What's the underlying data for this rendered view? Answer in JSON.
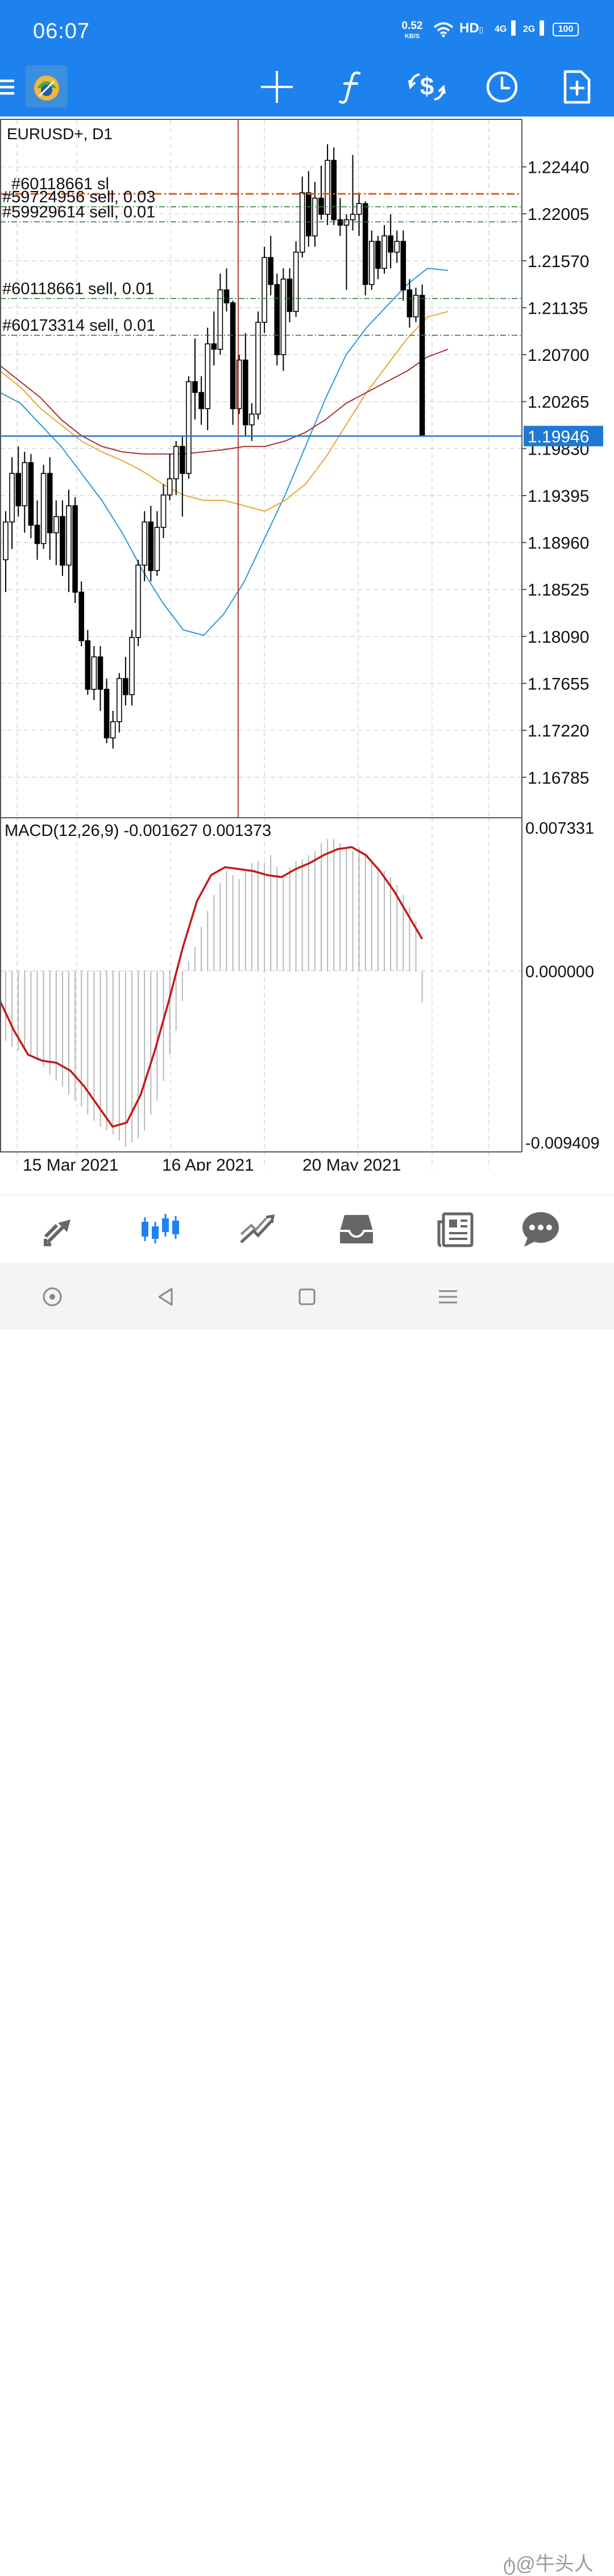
{
  "status_bar": {
    "time": "06:07",
    "net_speed": "0.52",
    "net_unit": "KB/S",
    "hd_label": "HD",
    "signal1": "4G",
    "signal2": "2G",
    "battery": "100"
  },
  "toolbar": {
    "menu_icon": "hamburger-menu-icon",
    "logo": "metatrader-logo",
    "crosshair_icon": "crosshair-icon",
    "indicators_icon": "function-f-icon",
    "symbol_icon": "dollar-exchange-icon",
    "timeframe_icon": "clock-icon",
    "new_order_icon": "document-plus-icon"
  },
  "chart": {
    "symbol_label": "EURUSD+, D1",
    "current_price": "1.19946",
    "price_ticks": [
      "1.22440",
      "1.22005",
      "1.21570",
      "1.21135",
      "1.20700",
      "1.20265",
      "1.19830",
      "1.19395",
      "1.18960",
      "1.18525",
      "1.18090",
      "1.17655",
      "1.17220",
      "1.16785"
    ],
    "date_ticks": [
      "15 Mar 2021",
      "16 Apr 2021",
      "20 May 2021"
    ],
    "order_lines": [
      {
        "label": "#60118661 sl",
        "price": 1.2219,
        "style": "sl"
      },
      {
        "label": "#59724956 sell, 0.03",
        "price": 1.2207,
        "style": "order"
      },
      {
        "label": "#59929614 sell, 0.01",
        "price": 1.2193,
        "style": "order"
      },
      {
        "label": "#60118661 sell, 0.01",
        "price": 1.2122,
        "style": "order"
      },
      {
        "label": "#60173314 sell, 0.01",
        "price": 1.2088,
        "style": "order"
      }
    ],
    "colors": {
      "bid_line": "#1f78d1",
      "sl_line": "#e05a1c",
      "order_line": "#2e7d32",
      "crosshair": "#a52a2a",
      "ma_fast": "#2b9ad8",
      "ma_mid": "#e8a830",
      "ma_slow": "#a83232",
      "macd_signal": "#c41a1a"
    }
  },
  "macd": {
    "label": "MACD(12,26,9) -0.001627 0.001373",
    "ticks": [
      "0.007331",
      "0.000000",
      "-0.009409"
    ]
  },
  "chart_data": {
    "type": "candlestick",
    "title": "EURUSD+, D1",
    "ylim": [
      1.1641,
      1.2288
    ],
    "candles": [
      {
        "o": 1.188,
        "h": 1.1925,
        "l": 1.185,
        "c": 1.1915
      },
      {
        "o": 1.1915,
        "h": 1.1975,
        "l": 1.189,
        "c": 1.196
      },
      {
        "o": 1.196,
        "h": 1.1985,
        "l": 1.192,
        "c": 1.193
      },
      {
        "o": 1.193,
        "h": 1.198,
        "l": 1.1905,
        "c": 1.197
      },
      {
        "o": 1.197,
        "h": 1.1978,
        "l": 1.19,
        "c": 1.1912
      },
      {
        "o": 1.1912,
        "h": 1.1935,
        "l": 1.188,
        "c": 1.1895
      },
      {
        "o": 1.1895,
        "h": 1.1968,
        "l": 1.189,
        "c": 1.196
      },
      {
        "o": 1.196,
        "h": 1.1975,
        "l": 1.188,
        "c": 1.1905
      },
      {
        "o": 1.1905,
        "h": 1.1935,
        "l": 1.1875,
        "c": 1.192
      },
      {
        "o": 1.192,
        "h": 1.1935,
        "l": 1.1865,
        "c": 1.1875
      },
      {
        "o": 1.1875,
        "h": 1.1945,
        "l": 1.185,
        "c": 1.193
      },
      {
        "o": 1.193,
        "h": 1.1938,
        "l": 1.184,
        "c": 1.185
      },
      {
        "o": 1.185,
        "h": 1.186,
        "l": 1.18,
        "c": 1.1805
      },
      {
        "o": 1.1805,
        "h": 1.1815,
        "l": 1.1755,
        "c": 1.176
      },
      {
        "o": 1.176,
        "h": 1.18,
        "l": 1.175,
        "c": 1.179
      },
      {
        "o": 1.179,
        "h": 1.18,
        "l": 1.174,
        "c": 1.176
      },
      {
        "o": 1.176,
        "h": 1.177,
        "l": 1.171,
        "c": 1.1715
      },
      {
        "o": 1.1715,
        "h": 1.174,
        "l": 1.1705,
        "c": 1.173
      },
      {
        "o": 1.173,
        "h": 1.1775,
        "l": 1.172,
        "c": 1.177
      },
      {
        "o": 1.177,
        "h": 1.179,
        "l": 1.1745,
        "c": 1.1755
      },
      {
        "o": 1.1755,
        "h": 1.1815,
        "l": 1.1745,
        "c": 1.1808
      },
      {
        "o": 1.1808,
        "h": 1.188,
        "l": 1.18,
        "c": 1.1875
      },
      {
        "o": 1.1875,
        "h": 1.1925,
        "l": 1.186,
        "c": 1.1915
      },
      {
        "o": 1.1915,
        "h": 1.193,
        "l": 1.186,
        "c": 1.187
      },
      {
        "o": 1.187,
        "h": 1.1925,
        "l": 1.1865,
        "c": 1.191
      },
      {
        "o": 1.191,
        "h": 1.195,
        "l": 1.19,
        "c": 1.194
      },
      {
        "o": 1.194,
        "h": 1.1978,
        "l": 1.1935,
        "c": 1.1955
      },
      {
        "o": 1.1955,
        "h": 1.199,
        "l": 1.194,
        "c": 1.1985
      },
      {
        "o": 1.1985,
        "h": 1.1995,
        "l": 1.192,
        "c": 1.196
      },
      {
        "o": 1.196,
        "h": 1.205,
        "l": 1.1955,
        "c": 1.2045
      },
      {
        "o": 1.2045,
        "h": 1.2085,
        "l": 1.201,
        "c": 1.2035
      },
      {
        "o": 1.2035,
        "h": 1.205,
        "l": 1.2005,
        "c": 1.202
      },
      {
        "o": 1.202,
        "h": 1.2095,
        "l": 1.2,
        "c": 1.208
      },
      {
        "o": 1.208,
        "h": 1.211,
        "l": 1.206,
        "c": 1.2075
      },
      {
        "o": 1.2075,
        "h": 1.2145,
        "l": 1.207,
        "c": 1.213
      },
      {
        "o": 1.213,
        "h": 1.215,
        "l": 1.211,
        "c": 1.2118
      },
      {
        "o": 1.2118,
        "h": 1.212,
        "l": 1.2005,
        "c": 1.202
      },
      {
        "o": 1.202,
        "h": 1.207,
        "l": 1.2015,
        "c": 1.2065
      },
      {
        "o": 1.2065,
        "h": 1.209,
        "l": 1.1995,
        "c": 1.2005
      },
      {
        "o": 1.2005,
        "h": 1.2025,
        "l": 1.199,
        "c": 1.2015
      },
      {
        "o": 1.2015,
        "h": 1.211,
        "l": 1.201,
        "c": 1.21
      },
      {
        "o": 1.21,
        "h": 1.217,
        "l": 1.209,
        "c": 1.216
      },
      {
        "o": 1.216,
        "h": 1.218,
        "l": 1.2125,
        "c": 1.2135
      },
      {
        "o": 1.2135,
        "h": 1.2145,
        "l": 1.206,
        "c": 1.207
      },
      {
        "o": 1.207,
        "h": 1.215,
        "l": 1.2055,
        "c": 1.214
      },
      {
        "o": 1.214,
        "h": 1.215,
        "l": 1.21,
        "c": 1.211
      },
      {
        "o": 1.211,
        "h": 1.2175,
        "l": 1.2105,
        "c": 1.2165
      },
      {
        "o": 1.2165,
        "h": 1.2235,
        "l": 1.216,
        "c": 1.222
      },
      {
        "o": 1.222,
        "h": 1.224,
        "l": 1.217,
        "c": 1.218
      },
      {
        "o": 1.218,
        "h": 1.223,
        "l": 1.217,
        "c": 1.2215
      },
      {
        "o": 1.2215,
        "h": 1.2245,
        "l": 1.2195,
        "c": 1.22
      },
      {
        "o": 1.22,
        "h": 1.2265,
        "l": 1.219,
        "c": 1.225
      },
      {
        "o": 1.225,
        "h": 1.2262,
        "l": 1.219,
        "c": 1.2195
      },
      {
        "o": 1.2195,
        "h": 1.2215,
        "l": 1.218,
        "c": 1.219
      },
      {
        "o": 1.219,
        "h": 1.22,
        "l": 1.213,
        "c": 1.2195
      },
      {
        "o": 1.2195,
        "h": 1.2255,
        "l": 1.2185,
        "c": 1.22
      },
      {
        "o": 1.22,
        "h": 1.222,
        "l": 1.218,
        "c": 1.221
      },
      {
        "o": 1.221,
        "h": 1.2212,
        "l": 1.2125,
        "c": 1.2135
      },
      {
        "o": 1.2135,
        "h": 1.2185,
        "l": 1.213,
        "c": 1.2175
      },
      {
        "o": 1.2175,
        "h": 1.218,
        "l": 1.214,
        "c": 1.215
      },
      {
        "o": 1.215,
        "h": 1.219,
        "l": 1.2145,
        "c": 1.218
      },
      {
        "o": 1.218,
        "h": 1.22,
        "l": 1.215,
        "c": 1.2165
      },
      {
        "o": 1.2165,
        "h": 1.2185,
        "l": 1.2155,
        "c": 1.2175
      },
      {
        "o": 1.2175,
        "h": 1.2185,
        "l": 1.212,
        "c": 1.213
      },
      {
        "o": 1.213,
        "h": 1.214,
        "l": 1.2095,
        "c": 1.2105
      },
      {
        "o": 1.2105,
        "h": 1.2132,
        "l": 1.21,
        "c": 1.2125
      },
      {
        "o": 1.2125,
        "h": 1.2135,
        "l": 1.1994,
        "c": 1.1995
      }
    ],
    "series": [
      {
        "name": "MA fast",
        "values": [
          1.2035,
          1.2025,
          1.2005,
          1.1985,
          1.196,
          1.1935,
          1.1905,
          1.187,
          1.184,
          1.1815,
          1.181,
          1.183,
          1.186,
          1.19,
          1.194,
          1.1985,
          1.203,
          1.207,
          1.2095,
          1.2115,
          1.2135,
          1.215,
          1.2148
        ]
      },
      {
        "name": "MA mid",
        "values": [
          1.2055,
          1.204,
          1.202,
          1.2005,
          1.199,
          1.198,
          1.1972,
          1.1962,
          1.195,
          1.194,
          1.1935,
          1.1935,
          1.193,
          1.1925,
          1.1935,
          1.195,
          1.1975,
          1.2005,
          1.2035,
          1.206,
          1.2085,
          1.2105,
          1.211
        ]
      },
      {
        "name": "MA slow",
        "values": [
          1.206,
          1.2045,
          1.203,
          1.201,
          1.1995,
          1.1985,
          1.198,
          1.1978,
          1.1978,
          1.1978,
          1.198,
          1.1982,
          1.1985,
          1.1985,
          1.199,
          1.1998,
          1.201,
          1.2025,
          1.2035,
          1.2045,
          1.2055,
          1.2068,
          1.2075
        ]
      }
    ],
    "macd_histogram": [
      -0.0035,
      -0.0038,
      -0.004,
      -0.004,
      -0.0042,
      -0.0045,
      -0.0048,
      -0.0052,
      -0.0055,
      -0.0058,
      -0.0062,
      -0.0065,
      -0.0068,
      -0.0072,
      -0.0075,
      -0.0078,
      -0.008,
      -0.0082,
      -0.0085,
      -0.0088,
      -0.0086,
      -0.0084,
      -0.008,
      -0.0072,
      -0.0065,
      -0.0055,
      -0.0042,
      -0.003,
      -0.0015,
      0.0005,
      0.0012,
      0.0022,
      0.003,
      0.0038,
      0.0044,
      0.005,
      0.0048,
      0.0046,
      0.005,
      0.0054,
      0.0055,
      0.0054,
      0.0058,
      0.0052,
      0.0048,
      0.0052,
      0.0055,
      0.0056,
      0.0058,
      0.006,
      0.0064,
      0.0066,
      0.0066,
      0.0064,
      0.0062,
      0.006,
      0.0062,
      0.0058,
      0.0055,
      0.0052,
      0.005,
      0.0047,
      0.0043,
      0.0038,
      0.0032,
      0.0025,
      -0.0016
    ],
    "macd_signal": [
      -0.0015,
      -0.003,
      -0.0042,
      -0.0045,
      -0.0046,
      -0.005,
      -0.0058,
      -0.0068,
      -0.0078,
      -0.0076,
      -0.0062,
      -0.004,
      -0.0015,
      0.0012,
      0.0035,
      0.0048,
      0.0052,
      0.0051,
      0.005,
      0.0048,
      0.0047,
      0.0051,
      0.0054,
      0.0058,
      0.0061,
      0.0062,
      0.0058,
      0.005,
      0.004,
      0.0028,
      0.0016
    ],
    "macd_ylim": [
      -0.009409,
      0.007331
    ]
  },
  "bottom_nav": {
    "items": [
      {
        "name": "quotes",
        "icon": "arrows-quotes-icon"
      },
      {
        "name": "chart",
        "icon": "candles-chart-icon",
        "active": true
      },
      {
        "name": "trade",
        "icon": "trend-trade-icon"
      },
      {
        "name": "history",
        "icon": "inbox-history-icon"
      },
      {
        "name": "news",
        "icon": "newspaper-icon"
      },
      {
        "name": "messages",
        "icon": "chat-bubble-icon"
      }
    ]
  },
  "system_nav": {
    "watermark": "@牛头人"
  }
}
